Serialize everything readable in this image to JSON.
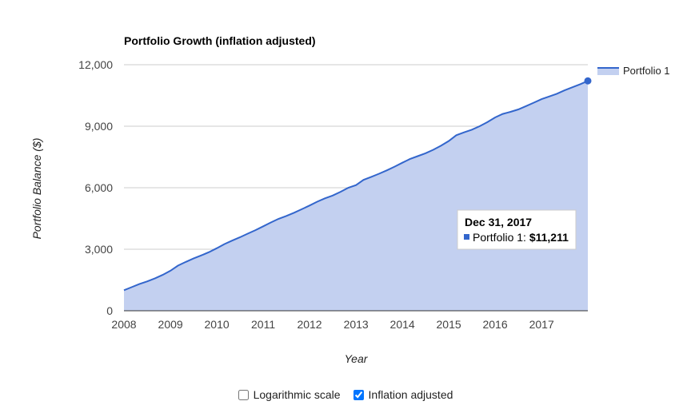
{
  "chart_data": {
    "type": "area",
    "title": "Portfolio Growth (inflation adjusted)",
    "xlabel": "Year",
    "ylabel": "Portfolio Balance ($)",
    "x_ticks": [
      "2008",
      "2009",
      "2010",
      "2011",
      "2012",
      "2013",
      "2014",
      "2015",
      "2016",
      "2017"
    ],
    "y_ticks": [
      "0",
      "3,000",
      "6,000",
      "9,000",
      "12,000"
    ],
    "ylim": [
      0,
      12000
    ],
    "xlim": [
      "2008-01-01",
      "2017-12-31"
    ],
    "grid": true,
    "legend": "right",
    "colors": {
      "line": "#3366cc",
      "fill": "#c3d0f0"
    },
    "series": [
      {
        "name": "Portfolio 1",
        "points": [
          [
            "2008-01-01",
            1000
          ],
          [
            "2008-03-01",
            1150
          ],
          [
            "2008-05-01",
            1300
          ],
          [
            "2008-07-01",
            1430
          ],
          [
            "2008-09-01",
            1580
          ],
          [
            "2008-11-01",
            1750
          ],
          [
            "2009-01-01",
            1950
          ],
          [
            "2009-03-01",
            2200
          ],
          [
            "2009-05-01",
            2380
          ],
          [
            "2009-07-01",
            2550
          ],
          [
            "2009-09-01",
            2700
          ],
          [
            "2009-11-01",
            2860
          ],
          [
            "2010-01-01",
            3050
          ],
          [
            "2010-03-01",
            3250
          ],
          [
            "2010-05-01",
            3420
          ],
          [
            "2010-07-01",
            3580
          ],
          [
            "2010-09-01",
            3760
          ],
          [
            "2010-11-01",
            3930
          ],
          [
            "2011-01-01",
            4120
          ],
          [
            "2011-03-01",
            4300
          ],
          [
            "2011-05-01",
            4480
          ],
          [
            "2011-07-01",
            4620
          ],
          [
            "2011-09-01",
            4780
          ],
          [
            "2011-11-01",
            4950
          ],
          [
            "2012-01-01",
            5130
          ],
          [
            "2012-03-01",
            5320
          ],
          [
            "2012-05-01",
            5480
          ],
          [
            "2012-07-01",
            5620
          ],
          [
            "2012-09-01",
            5800
          ],
          [
            "2012-11-01",
            6000
          ],
          [
            "2013-01-01",
            6130
          ],
          [
            "2013-03-01",
            6380
          ],
          [
            "2013-05-01",
            6530
          ],
          [
            "2013-07-01",
            6680
          ],
          [
            "2013-09-01",
            6850
          ],
          [
            "2013-11-01",
            7030
          ],
          [
            "2014-01-01",
            7220
          ],
          [
            "2014-03-01",
            7400
          ],
          [
            "2014-05-01",
            7540
          ],
          [
            "2014-07-01",
            7680
          ],
          [
            "2014-09-01",
            7850
          ],
          [
            "2014-11-01",
            8050
          ],
          [
            "2015-01-01",
            8280
          ],
          [
            "2015-03-01",
            8560
          ],
          [
            "2015-05-01",
            8700
          ],
          [
            "2015-07-01",
            8830
          ],
          [
            "2015-09-01",
            9000
          ],
          [
            "2015-11-01",
            9200
          ],
          [
            "2016-01-01",
            9430
          ],
          [
            "2016-03-01",
            9600
          ],
          [
            "2016-05-01",
            9700
          ],
          [
            "2016-07-01",
            9820
          ],
          [
            "2016-09-01",
            9980
          ],
          [
            "2016-11-01",
            10150
          ],
          [
            "2017-01-01",
            10320
          ],
          [
            "2017-03-01",
            10450
          ],
          [
            "2017-05-01",
            10580
          ],
          [
            "2017-07-01",
            10750
          ],
          [
            "2017-09-01",
            10900
          ],
          [
            "2017-11-01",
            11050
          ],
          [
            "2017-12-31",
            11211
          ]
        ]
      }
    ],
    "tooltip": {
      "date": "Dec 31, 2017",
      "series_label": "Portfolio 1: ",
      "value": "$11,211"
    }
  },
  "controls": {
    "log_scale": {
      "label": "Logarithmic scale",
      "checked": false
    },
    "inflation_adjusted": {
      "label": "Inflation adjusted",
      "checked": true
    }
  }
}
